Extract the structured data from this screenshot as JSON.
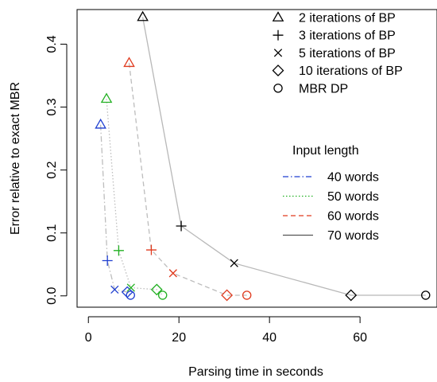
{
  "chart_data": {
    "type": "line",
    "xlabel": "Parsing time in seconds",
    "ylabel": "Error relative to exact MBR",
    "xlim": [
      -2.5,
      77
    ],
    "ylim": [
      -0.018,
      0.455
    ],
    "x_ticks": [
      0,
      20,
      40,
      60
    ],
    "y_ticks": [
      0.0,
      0.1,
      0.2,
      0.3,
      0.4
    ],
    "x_tick_labels": [
      "0",
      "20",
      "40",
      "60"
    ],
    "y_tick_labels": [
      "0.0",
      "0.1",
      "0.2",
      "0.3",
      "0.4"
    ],
    "grid": false,
    "legend_markers": {
      "position": "top-right",
      "entries": [
        {
          "marker": "triangle",
          "label": "2 iterations of BP"
        },
        {
          "marker": "plus",
          "label": "3 iterations of BP"
        },
        {
          "marker": "cross",
          "label": "5 iterations of BP"
        },
        {
          "marker": "diamond",
          "label": "10 iterations of BP"
        },
        {
          "marker": "circle",
          "label": "MBR DP"
        }
      ]
    },
    "legend_lines": {
      "title": "Input length",
      "position": "right",
      "entries": [
        {
          "style": "dotdash",
          "color": "#1f3fd0",
          "label": "40 words"
        },
        {
          "style": "dotted",
          "color": "#22b022",
          "label": "50 words"
        },
        {
          "style": "dashed",
          "color": "#e03a1e",
          "label": "60 words"
        },
        {
          "style": "solid",
          "color": "#555555",
          "label": "70 words"
        }
      ]
    },
    "series": [
      {
        "name": "40 words",
        "color": "#1f3fd0",
        "line_style": "dotdash",
        "points": [
          {
            "marker": "triangle",
            "x": 2.7,
            "y": 0.272
          },
          {
            "marker": "plus",
            "x": 4.2,
            "y": 0.056
          },
          {
            "marker": "cross",
            "x": 5.8,
            "y": 0.01
          },
          {
            "marker": "diamond",
            "x": 8.6,
            "y": 0.006
          },
          {
            "marker": "circle",
            "x": 9.3,
            "y": 0.001
          }
        ]
      },
      {
        "name": "50 words",
        "color": "#22b022",
        "line_style": "dotted",
        "points": [
          {
            "marker": "triangle",
            "x": 4.0,
            "y": 0.313
          },
          {
            "marker": "plus",
            "x": 6.7,
            "y": 0.072
          },
          {
            "marker": "cross",
            "x": 9.4,
            "y": 0.013
          },
          {
            "marker": "diamond",
            "x": 15.1,
            "y": 0.01
          },
          {
            "marker": "circle",
            "x": 16.4,
            "y": 0.001
          }
        ]
      },
      {
        "name": "60 words",
        "color": "#e03a1e",
        "line_style": "dashed",
        "points": [
          {
            "marker": "triangle",
            "x": 9.0,
            "y": 0.37
          },
          {
            "marker": "plus",
            "x": 13.9,
            "y": 0.073
          },
          {
            "marker": "cross",
            "x": 18.7,
            "y": 0.036
          },
          {
            "marker": "diamond",
            "x": 30.6,
            "y": 0.001
          },
          {
            "marker": "circle",
            "x": 35.0,
            "y": 0.001
          }
        ]
      },
      {
        "name": "70 words",
        "color": "#000000",
        "line_color": "#b8b8b8",
        "line_style": "solid",
        "points": [
          {
            "marker": "triangle",
            "x": 12.0,
            "y": 0.443
          },
          {
            "marker": "plus",
            "x": 20.5,
            "y": 0.111
          },
          {
            "marker": "cross",
            "x": 32.2,
            "y": 0.052
          },
          {
            "marker": "diamond",
            "x": 58.0,
            "y": 0.001
          },
          {
            "marker": "circle",
            "x": 74.5,
            "y": 0.001
          }
        ]
      }
    ]
  }
}
